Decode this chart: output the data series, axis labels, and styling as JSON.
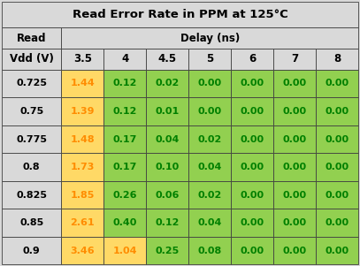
{
  "title": "Read Error Rate in PPM at 125°C",
  "row_header_line1": "Read",
  "row_header_line2": "Vdd (V)",
  "col_header": "Delay (ns)",
  "col_labels": [
    "3.5",
    "4",
    "4.5",
    "5",
    "6",
    "7",
    "8"
  ],
  "row_labels": [
    "0.725",
    "0.75",
    "0.775",
    "0.8",
    "0.825",
    "0.85",
    "0.9"
  ],
  "values": [
    [
      "1.44",
      "0.12",
      "0.02",
      "0.00",
      "0.00",
      "0.00",
      "0.00"
    ],
    [
      "1.39",
      "0.12",
      "0.01",
      "0.00",
      "0.00",
      "0.00",
      "0.00"
    ],
    [
      "1.48",
      "0.17",
      "0.04",
      "0.02",
      "0.00",
      "0.00",
      "0.00"
    ],
    [
      "1.73",
      "0.17",
      "0.10",
      "0.04",
      "0.00",
      "0.00",
      "0.00"
    ],
    [
      "1.85",
      "0.26",
      "0.06",
      "0.02",
      "0.00",
      "0.00",
      "0.00"
    ],
    [
      "2.61",
      "0.40",
      "0.12",
      "0.04",
      "0.00",
      "0.00",
      "0.00"
    ],
    [
      "3.46",
      "1.04",
      "0.25",
      "0.08",
      "0.00",
      "0.00",
      "0.00"
    ]
  ],
  "cell_colors": [
    [
      "#FFD966",
      "#92D050",
      "#92D050",
      "#92D050",
      "#92D050",
      "#92D050",
      "#92D050"
    ],
    [
      "#FFD966",
      "#92D050",
      "#92D050",
      "#92D050",
      "#92D050",
      "#92D050",
      "#92D050"
    ],
    [
      "#FFD966",
      "#92D050",
      "#92D050",
      "#92D050",
      "#92D050",
      "#92D050",
      "#92D050"
    ],
    [
      "#FFD966",
      "#92D050",
      "#92D050",
      "#92D050",
      "#92D050",
      "#92D050",
      "#92D050"
    ],
    [
      "#FFD966",
      "#92D050",
      "#92D050",
      "#92D050",
      "#92D050",
      "#92D050",
      "#92D050"
    ],
    [
      "#FFD966",
      "#92D050",
      "#92D050",
      "#92D050",
      "#92D050",
      "#92D050",
      "#92D050"
    ],
    [
      "#FFD966",
      "#FFD966",
      "#92D050",
      "#92D050",
      "#92D050",
      "#92D050",
      "#92D050"
    ]
  ],
  "value_text_colors": [
    [
      "#FF8C00",
      "#008000",
      "#008000",
      "#008000",
      "#008000",
      "#008000",
      "#008000"
    ],
    [
      "#FF8C00",
      "#008000",
      "#008000",
      "#008000",
      "#008000",
      "#008000",
      "#008000"
    ],
    [
      "#FF8C00",
      "#008000",
      "#008000",
      "#008000",
      "#008000",
      "#008000",
      "#008000"
    ],
    [
      "#FF8C00",
      "#008000",
      "#008000",
      "#008000",
      "#008000",
      "#008000",
      "#008000"
    ],
    [
      "#FF8C00",
      "#008000",
      "#008000",
      "#008000",
      "#008000",
      "#008000",
      "#008000"
    ],
    [
      "#FF8C00",
      "#008000",
      "#008000",
      "#008000",
      "#008000",
      "#008000",
      "#008000"
    ],
    [
      "#FF8C00",
      "#FF8C00",
      "#008000",
      "#008000",
      "#008000",
      "#008000",
      "#008000"
    ]
  ],
  "header_bg": "#D9D9D9",
  "title_bg": "#D9D9D9",
  "border_color": "#404040",
  "header_text_color": "#000000",
  "title_fontsize": 9.5,
  "header_fontsize": 8.5,
  "cell_fontsize": 8.0,
  "fig_width": 4.07,
  "fig_height": 3.01,
  "dpi": 100
}
